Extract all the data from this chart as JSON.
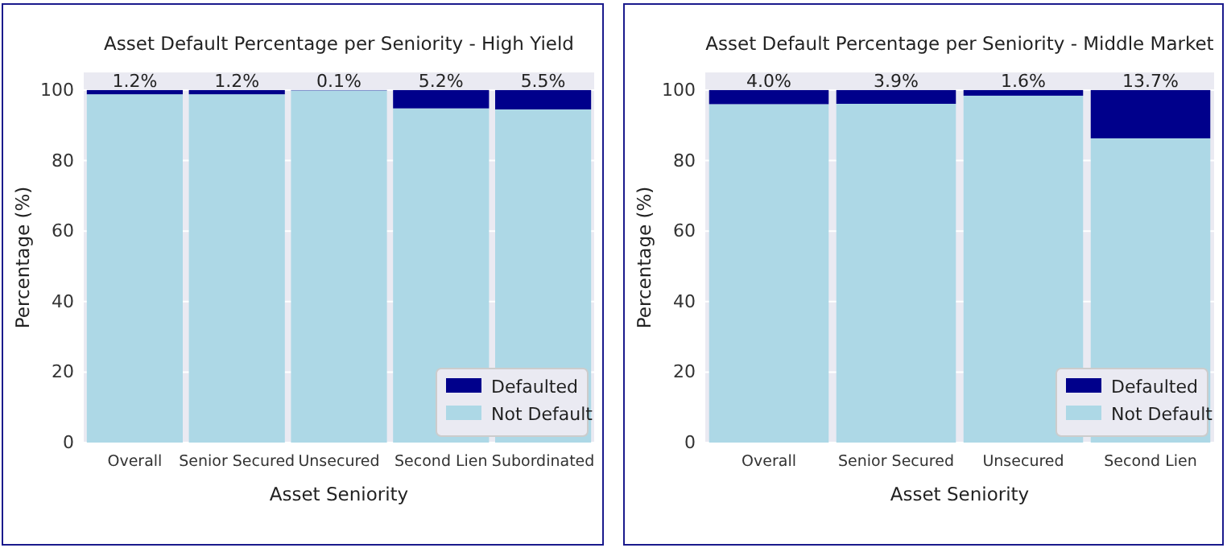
{
  "chart_data": [
    {
      "type": "bar",
      "title": "Asset Default Percentage per Seniority - High Yield",
      "xlabel": "Asset Seniority",
      "ylabel": "Percentage (%)",
      "categories": [
        "Overall",
        "Senior Secured",
        "Unsecured",
        "Second Lien",
        "Subordinated"
      ],
      "stacked": true,
      "ylim": [
        0,
        105
      ],
      "yticks": [
        0,
        20,
        40,
        60,
        80,
        100
      ],
      "grid": "y",
      "legend": "bottom right",
      "series": [
        {
          "name": "Not Default",
          "color": "#add8e6",
          "values": [
            98.8,
            98.8,
            99.9,
            94.8,
            94.5
          ]
        },
        {
          "name": "Defaulted",
          "color": "#00008b",
          "values": [
            1.2,
            1.2,
            0.1,
            5.2,
            5.5
          ],
          "value_labels": [
            "1.2%",
            "1.2%",
            "0.1%",
            "5.2%",
            "5.5%"
          ]
        }
      ]
    },
    {
      "type": "bar",
      "title": "Asset Default Percentage per Seniority - Middle Market",
      "xlabel": "Asset Seniority",
      "ylabel": "Percentage (%)",
      "categories": [
        "Overall",
        "Senior Secured",
        "Unsecured",
        "Second Lien"
      ],
      "stacked": true,
      "ylim": [
        0,
        105
      ],
      "yticks": [
        0,
        20,
        40,
        60,
        80,
        100
      ],
      "grid": "y",
      "legend": "bottom right",
      "series": [
        {
          "name": "Not Default",
          "color": "#add8e6",
          "values": [
            96.0,
            96.1,
            98.4,
            86.3
          ]
        },
        {
          "name": "Defaulted",
          "color": "#00008b",
          "values": [
            4.0,
            3.9,
            1.6,
            13.7
          ],
          "value_labels": [
            "4.0%",
            "3.9%",
            "1.6%",
            "13.7%"
          ]
        }
      ]
    }
  ]
}
